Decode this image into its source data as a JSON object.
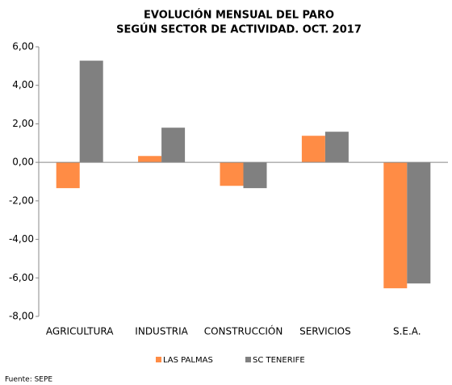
{
  "chart_data": {
    "type": "bar",
    "title": "EVOLUCIÓN MENSUAL DEL PARO",
    "subtitle": "SEGÚN SECTOR DE ACTIVIDAD. OCT. 2017",
    "categories": [
      "AGRICULTURA",
      "INDUSTRIA",
      "CONSTRUCCIÓN",
      "SERVICIOS",
      "S.E.A."
    ],
    "series": [
      {
        "name": "LAS PALMAS",
        "color": "#ff8c45",
        "values": [
          -1.34,
          0.33,
          -1.22,
          1.38,
          -6.54
        ]
      },
      {
        "name": "SC TENERIFE",
        "color": "#808080",
        "values": [
          5.28,
          1.8,
          -1.34,
          1.59,
          -6.29
        ]
      }
    ],
    "ylim": [
      -8,
      6
    ],
    "yticks": [
      {
        "value": -8,
        "label": "-8,00"
      },
      {
        "value": -6,
        "label": "-6,00"
      },
      {
        "value": -4,
        "label": "-4,00"
      },
      {
        "value": -2,
        "label": "-2,00"
      },
      {
        "value": 0,
        "label": "0,00"
      },
      {
        "value": 2,
        "label": "2,00"
      },
      {
        "value": 4,
        "label": "4,00"
      },
      {
        "value": 6,
        "label": "6,00"
      }
    ],
    "grid": false,
    "legend": "bottom",
    "source": "Fuente: SEPE"
  }
}
